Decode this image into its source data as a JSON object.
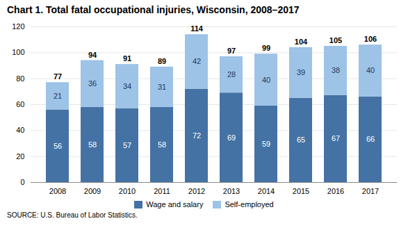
{
  "chart_data": {
    "type": "bar",
    "stacked": true,
    "title": "Chart 1. Total fatal occupational injuries, Wisconsin,  2008–2017",
    "source": "SOURCE: U.S. Bureau of Labor Statistics.",
    "categories": [
      "2008",
      "2009",
      "2010",
      "2011",
      "2012",
      "2013",
      "2014",
      "2015",
      "2016",
      "2017"
    ],
    "series": [
      {
        "name": "Wage and salary",
        "color": "#4472A4",
        "values": [
          56,
          58,
          57,
          58,
          72,
          69,
          59,
          65,
          67,
          66
        ]
      },
      {
        "name": "Self-employed",
        "color": "#9DC3E6",
        "values": [
          21,
          36,
          34,
          31,
          42,
          28,
          40,
          39,
          38,
          40
        ]
      }
    ],
    "totals": [
      77,
      94,
      91,
      89,
      114,
      97,
      99,
      104,
      105,
      106
    ],
    "ylim": [
      0,
      120
    ],
    "yticks": [
      0,
      20,
      40,
      60,
      80,
      100,
      120
    ],
    "grid": true,
    "legend": "bottom",
    "data_labels": true
  }
}
